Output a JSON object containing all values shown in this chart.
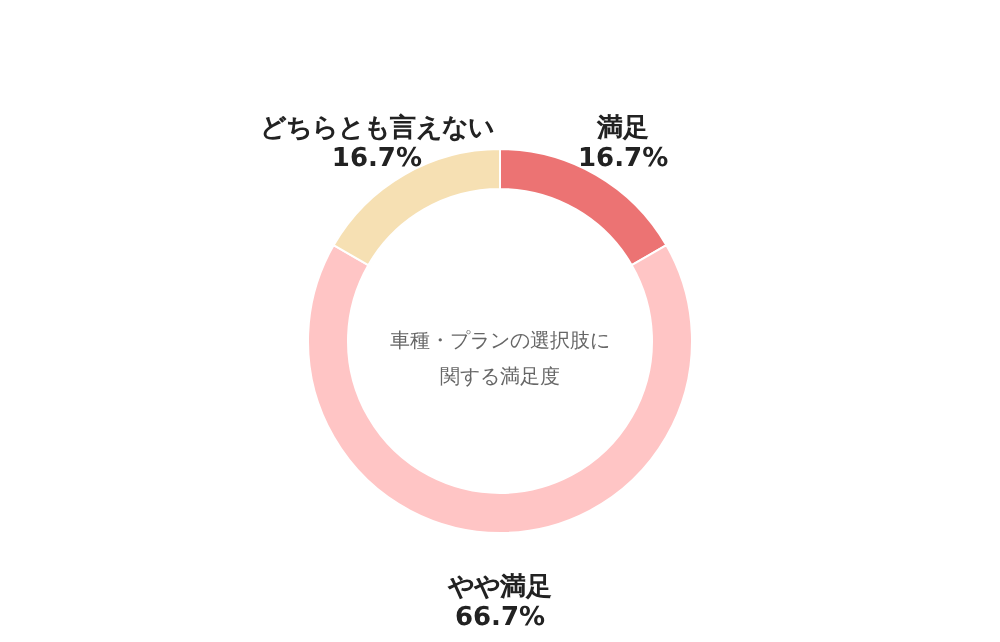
{
  "chart_data": {
    "type": "donut",
    "title": "車種・プランの選択肢に関する満足度",
    "categories": [
      "満足",
      "やや満足",
      "どちらとも言えない"
    ],
    "values": [
      16.7,
      66.7,
      16.7
    ],
    "value_labels": [
      "16.7%",
      "66.7%",
      "16.7%"
    ],
    "colors": [
      "#ec7373",
      "#ffc5c5",
      "#f6e0b3"
    ]
  }
}
